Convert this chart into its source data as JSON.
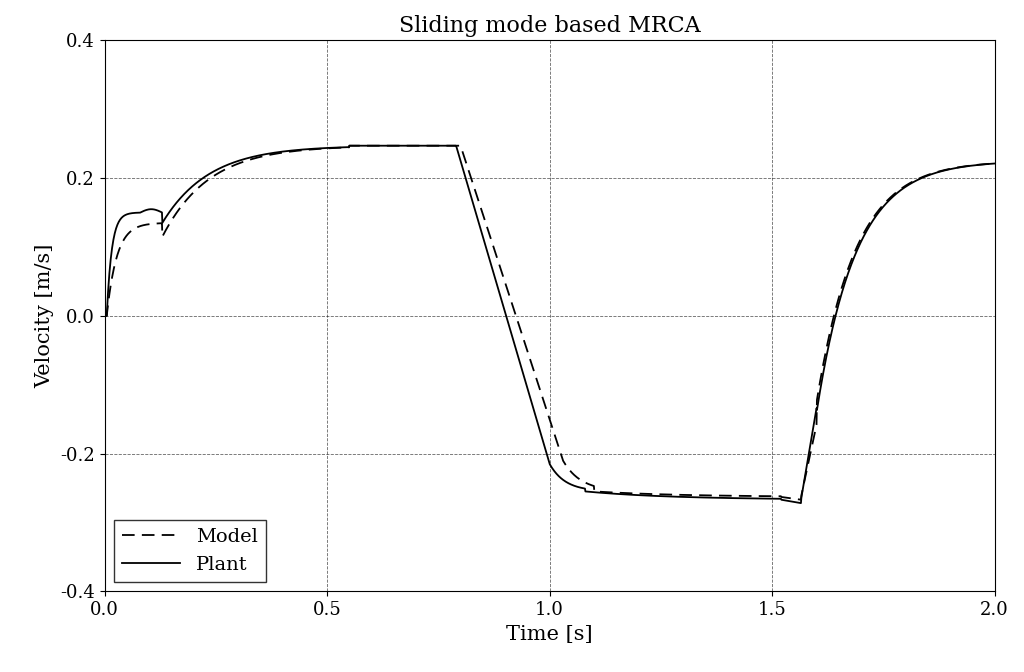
{
  "title": "Sliding mode based MRCA",
  "xlabel": "Time [s]",
  "ylabel": "Velocity [m/s]",
  "xlim": [
    0,
    2
  ],
  "ylim": [
    -0.4,
    0.4
  ],
  "xticks": [
    0,
    0.5,
    1.0,
    1.5,
    2.0
  ],
  "yticks": [
    -0.4,
    -0.2,
    0,
    0.2,
    0.4
  ],
  "grid_color": "#000000",
  "plant_color": "#000000",
  "model_color": "#000000",
  "plant_lw": 1.3,
  "model_lw": 1.3,
  "legend_loc": "lower left",
  "title_fontsize": 16,
  "label_fontsize": 15,
  "tick_fontsize": 13,
  "legend_fontsize": 14,
  "bg_color": "#ffffff"
}
